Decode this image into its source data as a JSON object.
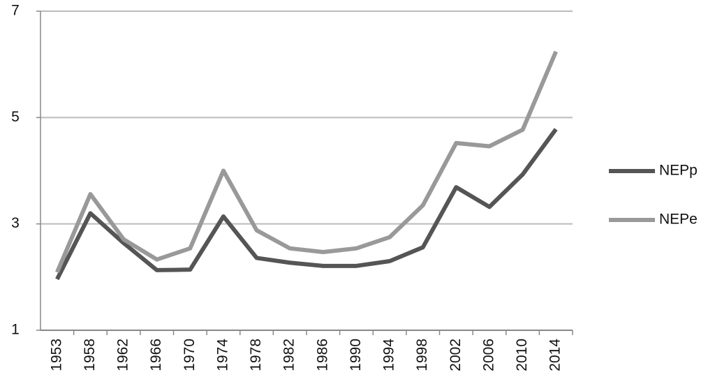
{
  "chart_data": {
    "type": "line",
    "categories": [
      "1953",
      "1958",
      "1962",
      "1966",
      "1970",
      "1974",
      "1978",
      "1982",
      "1986",
      "1990",
      "1994",
      "1998",
      "2002",
      "2006",
      "2010",
      "2014"
    ],
    "series": [
      {
        "name": "NEPp",
        "color": "#555555",
        "values": [
          1.96,
          3.2,
          2.64,
          2.13,
          2.14,
          3.14,
          2.36,
          2.27,
          2.21,
          2.21,
          2.3,
          2.56,
          3.69,
          3.32,
          3.93,
          4.78
        ]
      },
      {
        "name": "NEPe",
        "color": "#999999",
        "values": [
          2.09,
          3.56,
          2.71,
          2.33,
          2.54,
          4.0,
          2.88,
          2.54,
          2.47,
          2.54,
          2.75,
          3.35,
          4.52,
          4.46,
          4.77,
          6.24
        ]
      }
    ],
    "ylim": [
      1,
      7
    ],
    "yticks": [
      1,
      3,
      5,
      7
    ],
    "grid": true,
    "legend": "right"
  }
}
